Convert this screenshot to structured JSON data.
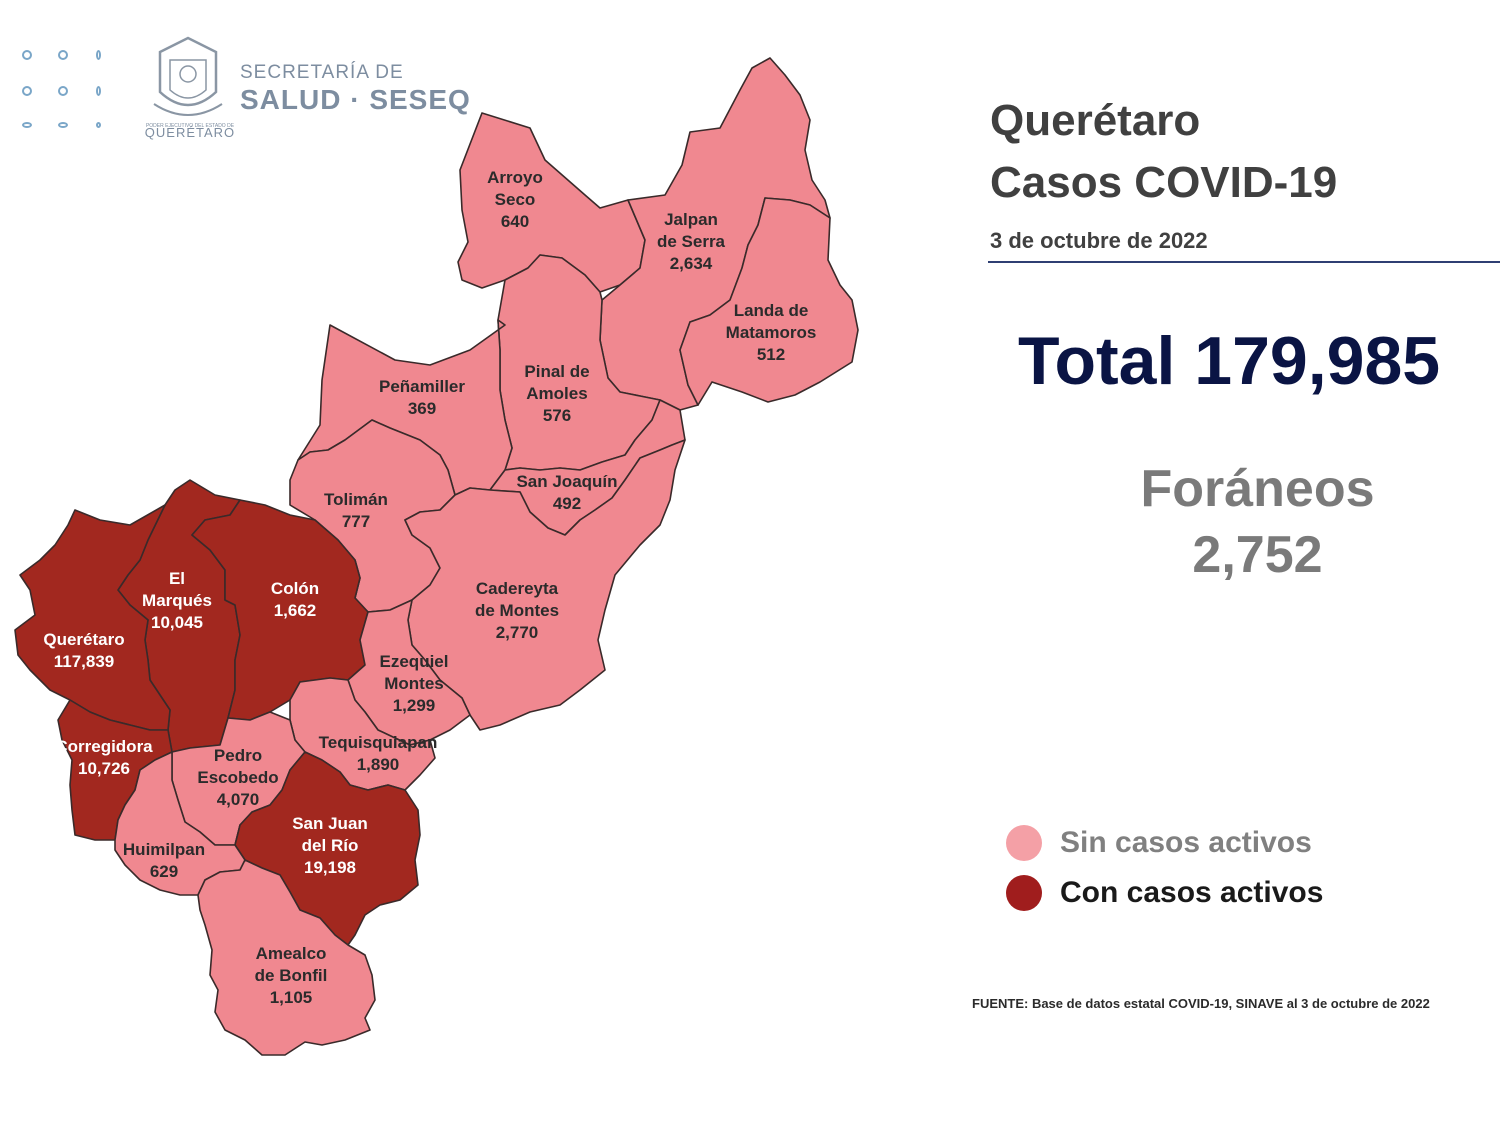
{
  "header": {
    "org_line1": "SECRETARÍA DE",
    "org_line2": "SALUD · SESEQ",
    "seal_caption": "QUERÉTARO",
    "seal_caption_small": "PODER EJECUTIVO DEL ESTADO DE"
  },
  "title": {
    "line1": "Querétaro",
    "line2": "Casos COVID-19"
  },
  "date": "3 de octubre de 2022",
  "total_text": "Total 179,985",
  "foraneos": {
    "label": "Foráneos",
    "value": "2,752"
  },
  "legend": [
    {
      "label": "Sin casos activos",
      "color": "#f4a0a6"
    },
    {
      "label": "Con casos activos",
      "color": "#a01d1d"
    }
  ],
  "colors": {
    "inactive": "#f08890",
    "active": "#a2281f",
    "border": "#3a2a2a"
  },
  "municipalities": [
    {
      "id": "arroyo-seco",
      "lines": [
        "Arroyo",
        "Seco",
        "640"
      ],
      "active": false
    },
    {
      "id": "jalpan",
      "lines": [
        "Jalpan",
        "de Serra",
        "2,634"
      ],
      "active": false
    },
    {
      "id": "landa",
      "lines": [
        "Landa de",
        "Matamoros",
        "512"
      ],
      "active": false
    },
    {
      "id": "pinal",
      "lines": [
        "Pinal de",
        "Amoles",
        "576"
      ],
      "active": false
    },
    {
      "id": "penamiller",
      "lines": [
        "Peñamiller",
        "369"
      ],
      "active": false
    },
    {
      "id": "san-joaquin",
      "lines": [
        "San Joaquín",
        "492"
      ],
      "active": false
    },
    {
      "id": "toliman",
      "lines": [
        "Tolimán",
        "777"
      ],
      "active": false
    },
    {
      "id": "cadereyta",
      "lines": [
        "Cadereyta",
        "de Montes",
        "2,770"
      ],
      "active": false
    },
    {
      "id": "el-marques",
      "lines": [
        "El",
        "Marqués",
        "10,045"
      ],
      "active": true
    },
    {
      "id": "colon",
      "lines": [
        "Colón",
        "1,662"
      ],
      "active": true
    },
    {
      "id": "queretaro",
      "lines": [
        "Querétaro",
        "117,839"
      ],
      "active": true
    },
    {
      "id": "ezequiel",
      "lines": [
        "Ezequiel",
        "Montes",
        "1,299"
      ],
      "active": false
    },
    {
      "id": "tequisquiapan",
      "lines": [
        "Tequisquiapan",
        "1,890"
      ],
      "active": false
    },
    {
      "id": "corregidora",
      "lines": [
        "Corregidora",
        "10,726"
      ],
      "active": true
    },
    {
      "id": "pedro-escobedo",
      "lines": [
        "Pedro",
        "Escobedo",
        "4,070"
      ],
      "active": false
    },
    {
      "id": "san-juan",
      "lines": [
        "San Juan",
        "del Río",
        "19,198"
      ],
      "active": true
    },
    {
      "id": "huimilpan",
      "lines": [
        "Huimilpan",
        "629"
      ],
      "active": false
    },
    {
      "id": "amealco",
      "lines": [
        "Amealco",
        "de Bonfil",
        "1,105"
      ],
      "active": false
    }
  ],
  "source": "FUENTE: Base de datos estatal COVID-19, SINAVE al 3 de octubre de 2022"
}
